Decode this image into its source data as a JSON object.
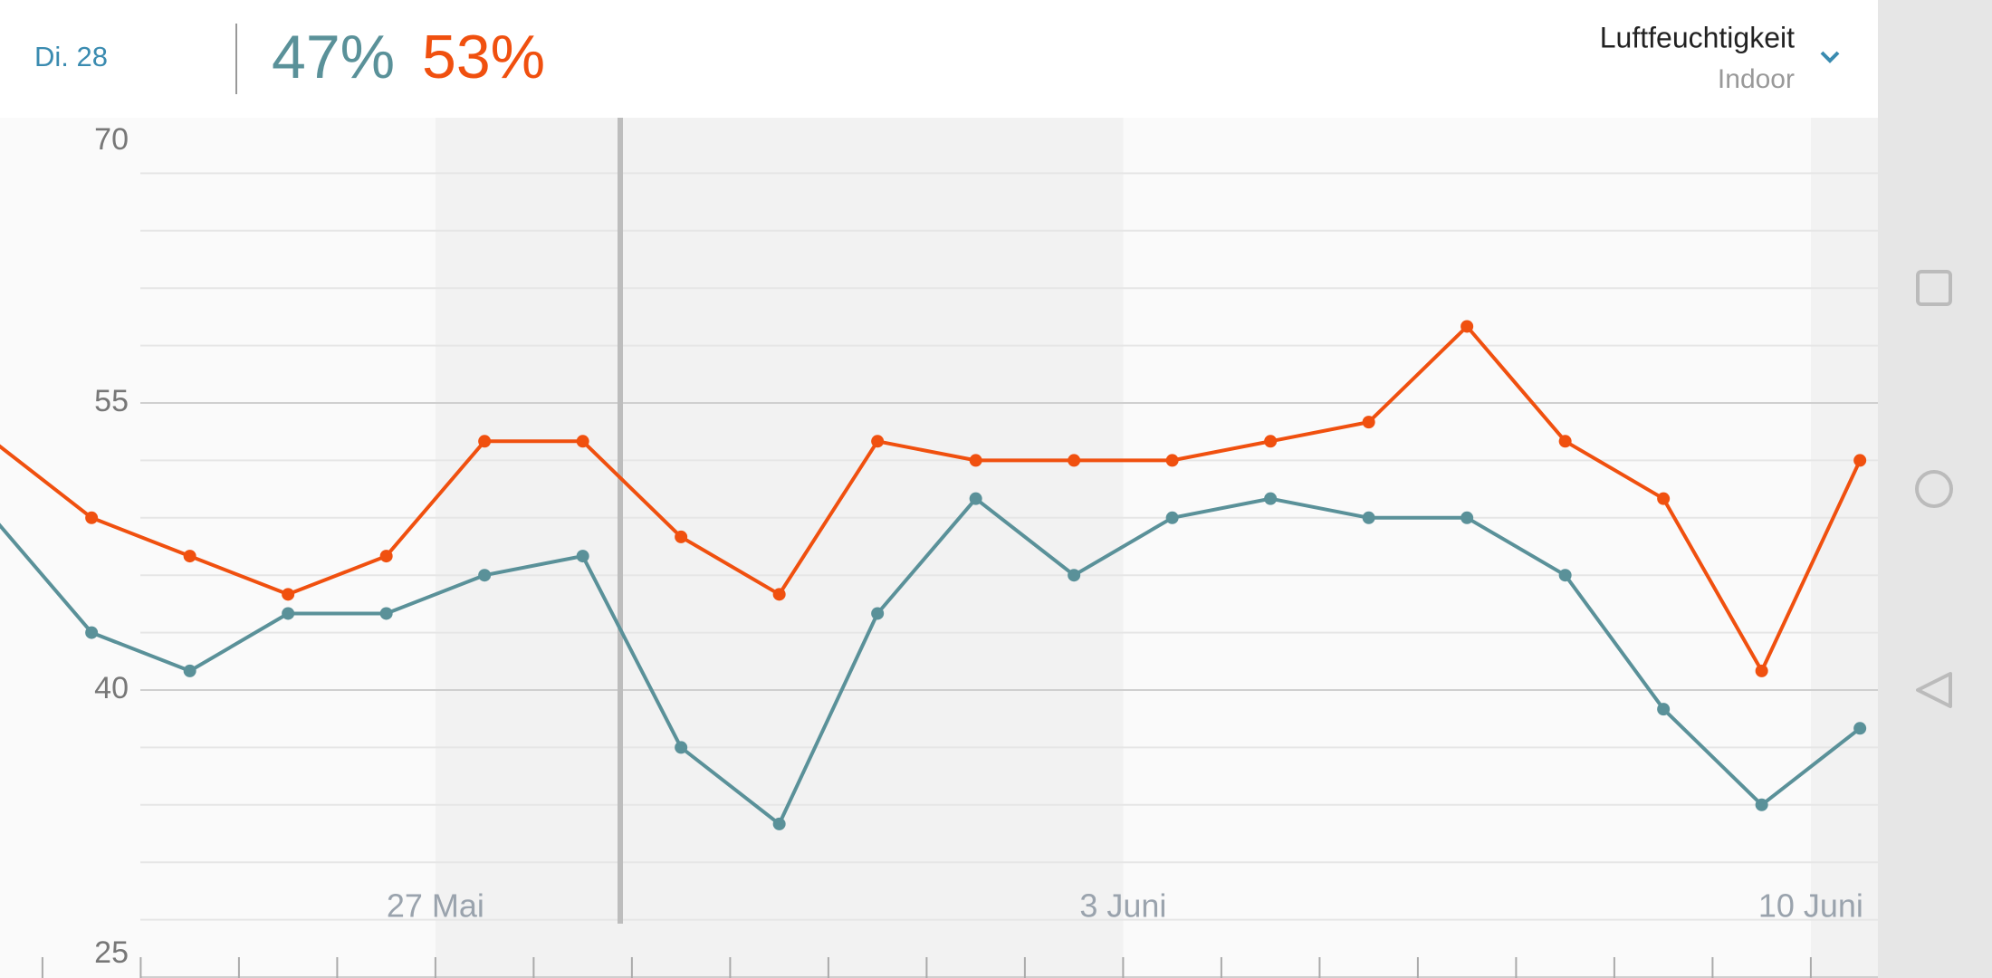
{
  "header": {
    "date": "Di. 28",
    "value_a": "47%",
    "value_b": "53%",
    "metric": "Luftfeuchtigkeit",
    "location": "Indoor"
  },
  "chart_data": {
    "type": "line",
    "categories": [
      null,
      null,
      null,
      null,
      null,
      "27 Mai",
      null,
      null,
      null,
      null,
      null,
      null,
      "3 Juni",
      null,
      null,
      null,
      null,
      null,
      null,
      "10 Juni"
    ],
    "series": [
      {
        "color": "#f0500f",
        "values": [
          53,
          49,
          47,
          45,
          47,
          53,
          53,
          48,
          45,
          53,
          52,
          52,
          52,
          53,
          54,
          59,
          53,
          50,
          41,
          52
        ]
      },
      {
        "color": "#5a9199",
        "values": [
          49,
          43,
          41,
          44,
          44,
          46,
          47,
          37,
          33,
          44,
          50,
          46,
          49,
          50,
          49,
          49,
          46,
          39,
          34,
          38
        ]
      }
    ],
    "ylim": [
      25,
      70
    ],
    "yticks": [
      25,
      40,
      55,
      70
    ],
    "grid": true
  }
}
